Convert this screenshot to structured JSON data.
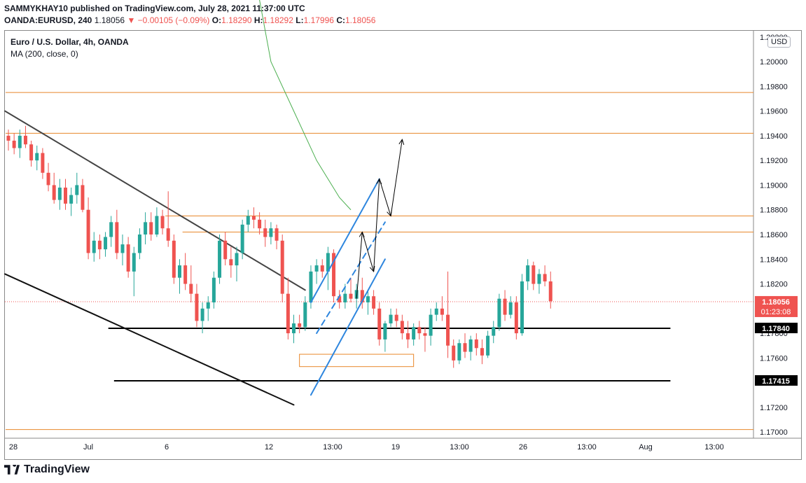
{
  "header": {
    "published": "SAMMYKHAY10 published on TradingView.com, July 28, 2021 11:37:00 UTC",
    "symbol": "OANDA:EURUSD, 240",
    "last": "1.18056",
    "change": "−0.00105 (−0.09%)",
    "o_label": "O:",
    "o": "1.18290",
    "h_label": "H:",
    "h": "1.18292",
    "l_label": "L:",
    "l": "1.17996",
    "c_label": "C:",
    "c": "1.18056"
  },
  "legend": {
    "title": "Euro / U.S. Dollar, 4h, OANDA",
    "indicator": "MA (200, close, 0)"
  },
  "currency_button": "USD",
  "footer": {
    "brand": "TradingView",
    "logo_icon": "tradingview-logo-icon"
  },
  "chart_data": {
    "type": "candlestick",
    "ylim": [
      1.1695,
      1.2025
    ],
    "y_ticks": [
      "1.17000",
      "1.17200",
      "1.17400",
      "1.17600",
      "1.17800",
      "1.18000",
      "1.18200",
      "1.18400",
      "1.18600",
      "1.18800",
      "1.19000",
      "1.19200",
      "1.19400",
      "1.19600",
      "1.19800",
      "1.20000",
      "1.20200"
    ],
    "x_ticks": [
      "28",
      "Jul",
      "6",
      "12",
      "13:00",
      "19",
      "13:00",
      "26",
      "13:00",
      "Aug",
      "13:00"
    ],
    "price_labels": [
      {
        "text": "1.18056",
        "sub": "01:23:08",
        "value": 1.18056,
        "color": "#ef5350"
      },
      {
        "text": "1.17840",
        "value": 1.1784,
        "color": "#000000"
      },
      {
        "text": "1.17415",
        "value": 1.17415,
        "color": "#000000"
      }
    ],
    "colors": {
      "up": "#26a69a",
      "down": "#ef5350",
      "orange": "#e8872a",
      "blue": "#2e86de",
      "ma": "#4caf50",
      "line": "#000000"
    },
    "candles": [
      [
        1.194,
        1.1945,
        1.1928,
        1.1936
      ],
      [
        1.1936,
        1.1942,
        1.1925,
        1.193
      ],
      [
        1.193,
        1.1945,
        1.1922,
        1.194
      ],
      [
        1.194,
        1.1948,
        1.193,
        1.1933
      ],
      [
        1.1933,
        1.1936,
        1.1915,
        1.192
      ],
      [
        1.192,
        1.1932,
        1.1912,
        1.1926
      ],
      [
        1.1926,
        1.193,
        1.1905,
        1.191
      ],
      [
        1.191,
        1.1918,
        1.1895,
        1.19
      ],
      [
        1.19,
        1.191,
        1.1885,
        1.1888
      ],
      [
        1.1888,
        1.1905,
        1.188,
        1.1898
      ],
      [
        1.1898,
        1.1905,
        1.188,
        1.1885
      ],
      [
        1.1885,
        1.1898,
        1.1875,
        1.1892
      ],
      [
        1.1892,
        1.191,
        1.1885,
        1.19
      ],
      [
        1.19,
        1.1905,
        1.1878,
        1.188
      ],
      [
        1.188,
        1.189,
        1.184,
        1.1845
      ],
      [
        1.1845,
        1.1862,
        1.1838,
        1.1855
      ],
      [
        1.1855,
        1.186,
        1.184,
        1.1848
      ],
      [
        1.1848,
        1.1862,
        1.1842,
        1.1858
      ],
      [
        1.1858,
        1.1875,
        1.185,
        1.187
      ],
      [
        1.187,
        1.188,
        1.184,
        1.1845
      ],
      [
        1.1845,
        1.186,
        1.1835,
        1.1852
      ],
      [
        1.1852,
        1.1858,
        1.1825,
        1.183
      ],
      [
        1.183,
        1.185,
        1.181,
        1.1845
      ],
      [
        1.1845,
        1.1865,
        1.184,
        1.186
      ],
      [
        1.186,
        1.1878,
        1.1852,
        1.187
      ],
      [
        1.187,
        1.1878,
        1.1855,
        1.186
      ],
      [
        1.186,
        1.1882,
        1.1858,
        1.1875
      ],
      [
        1.1875,
        1.188,
        1.186,
        1.1865
      ],
      [
        1.1865,
        1.1895,
        1.185,
        1.1855
      ],
      [
        1.1855,
        1.186,
        1.182,
        1.1825
      ],
      [
        1.1825,
        1.184,
        1.1812,
        1.1835
      ],
      [
        1.1835,
        1.1845,
        1.1815,
        1.182
      ],
      [
        1.182,
        1.1835,
        1.1805,
        1.1812
      ],
      [
        1.1812,
        1.182,
        1.1785,
        1.179
      ],
      [
        1.179,
        1.1805,
        1.178,
        1.18
      ],
      [
        1.18,
        1.181,
        1.179,
        1.1805
      ],
      [
        1.1805,
        1.183,
        1.18,
        1.1825
      ],
      [
        1.1825,
        1.186,
        1.182,
        1.1855
      ],
      [
        1.1855,
        1.1862,
        1.1835,
        1.184
      ],
      [
        1.184,
        1.185,
        1.1825,
        1.1835
      ],
      [
        1.1835,
        1.185,
        1.1822,
        1.1845
      ],
      [
        1.1845,
        1.1872,
        1.184,
        1.1868
      ],
      [
        1.1868,
        1.188,
        1.1862,
        1.1875
      ],
      [
        1.1875,
        1.1882,
        1.1865,
        1.1872
      ],
      [
        1.1872,
        1.1878,
        1.186,
        1.1865
      ],
      [
        1.1865,
        1.1872,
        1.185,
        1.1858
      ],
      [
        1.1858,
        1.187,
        1.1852,
        1.1865
      ],
      [
        1.1865,
        1.1868,
        1.1848,
        1.1855
      ],
      [
        1.1855,
        1.186,
        1.1805,
        1.1812
      ],
      [
        1.1812,
        1.1825,
        1.1775,
        1.178
      ],
      [
        1.178,
        1.1795,
        1.1772,
        1.1788
      ],
      [
        1.1788,
        1.1795,
        1.178,
        1.1785
      ],
      [
        1.1785,
        1.181,
        1.1782,
        1.1805
      ],
      [
        1.1805,
        1.1835,
        1.18,
        1.183
      ],
      [
        1.183,
        1.184,
        1.182,
        1.1835
      ],
      [
        1.1835,
        1.184,
        1.1825,
        1.183
      ],
      [
        1.183,
        1.185,
        1.1815,
        1.1845
      ],
      [
        1.1845,
        1.1848,
        1.1805,
        1.181
      ],
      [
        1.181,
        1.1815,
        1.18,
        1.1805
      ],
      [
        1.1805,
        1.182,
        1.18,
        1.1812
      ],
      [
        1.1812,
        1.1825,
        1.1805,
        1.1808
      ],
      [
        1.1808,
        1.182,
        1.18,
        1.1815
      ],
      [
        1.1815,
        1.1825,
        1.18,
        1.1805
      ],
      [
        1.1805,
        1.1815,
        1.1795,
        1.181
      ],
      [
        1.181,
        1.1815,
        1.1795,
        1.18
      ],
      [
        1.18,
        1.1805,
        1.177,
        1.1775
      ],
      [
        1.1775,
        1.179,
        1.1765,
        1.1788
      ],
      [
        1.1788,
        1.18,
        1.1785,
        1.1795
      ],
      [
        1.1795,
        1.18,
        1.1785,
        1.179
      ],
      [
        1.179,
        1.1795,
        1.1775,
        1.178
      ],
      [
        1.178,
        1.179,
        1.1768,
        1.1775
      ],
      [
        1.1775,
        1.1788,
        1.177,
        1.1785
      ],
      [
        1.1785,
        1.179,
        1.1775,
        1.178
      ],
      [
        1.178,
        1.1785,
        1.1765,
        1.1778
      ],
      [
        1.1778,
        1.18,
        1.177,
        1.1795
      ],
      [
        1.1795,
        1.1805,
        1.179,
        1.18
      ],
      [
        1.18,
        1.181,
        1.179,
        1.1795
      ],
      [
        1.1795,
        1.183,
        1.176,
        1.177
      ],
      [
        1.177,
        1.1775,
        1.1752,
        1.1758
      ],
      [
        1.1758,
        1.1775,
        1.1755,
        1.1772
      ],
      [
        1.1772,
        1.178,
        1.176,
        1.1765
      ],
      [
        1.1765,
        1.1778,
        1.1758,
        1.1775
      ],
      [
        1.1775,
        1.178,
        1.1762,
        1.1768
      ],
      [
        1.1768,
        1.1775,
        1.1755,
        1.1762
      ],
      [
        1.1762,
        1.1782,
        1.176,
        1.1778
      ],
      [
        1.1778,
        1.179,
        1.1772,
        1.1785
      ],
      [
        1.1785,
        1.1812,
        1.1782,
        1.1808
      ],
      [
        1.1808,
        1.1815,
        1.179,
        1.1795
      ],
      [
        1.1795,
        1.181,
        1.1792,
        1.1805
      ],
      [
        1.1805,
        1.181,
        1.1775,
        1.178
      ],
      [
        1.178,
        1.1828,
        1.1778,
        1.1822
      ],
      [
        1.1822,
        1.184,
        1.1815,
        1.1835
      ],
      [
        1.1835,
        1.1838,
        1.1815,
        1.182
      ],
      [
        1.182,
        1.1832,
        1.1812,
        1.1828
      ],
      [
        1.1828,
        1.1835,
        1.1818,
        1.1822
      ],
      [
        1.1822,
        1.183,
        1.18,
        1.1806
      ]
    ],
    "ma_line": [
      [
        44,
        1.205
      ],
      [
        46,
        1.2
      ],
      [
        50,
        1.196
      ],
      [
        54,
        1.192
      ],
      [
        58,
        1.189
      ],
      [
        60,
        1.188
      ]
    ],
    "channel_upper_line": [
      [
        0,
        1.196
      ],
      [
        52,
        1.1815
      ]
    ],
    "channel_lower_line": [
      [
        0,
        1.1828
      ],
      [
        50,
        1.1722
      ]
    ],
    "horizontal_levels": [
      {
        "value": 1.1975,
        "color": "orange",
        "from": 0
      },
      {
        "value": 1.1942,
        "color": "orange",
        "from": 0
      },
      {
        "value": 1.1875,
        "color": "orange",
        "from": 28
      },
      {
        "value": 1.1862,
        "color": "orange",
        "from": 31
      },
      {
        "value": 1.1702,
        "color": "orange",
        "from": 0
      },
      {
        "value": 1.1784,
        "color": "black",
        "from": 18,
        "to": 116,
        "width": 2
      },
      {
        "value": 1.17415,
        "color": "black",
        "from": 19,
        "to": 116,
        "width": 2
      }
    ],
    "support_box": {
      "x0": 51,
      "x1": 71,
      "y0": 1.1753,
      "y1": 1.1763
    },
    "blue_channel": {
      "upper": [
        [
          53,
          1.1805
        ],
        [
          65,
          1.1905
        ]
      ],
      "lower": [
        [
          53,
          1.173
        ],
        [
          66,
          1.184
        ]
      ],
      "mid_dashed": [
        [
          54,
          1.178
        ],
        [
          66,
          1.187
        ]
      ]
    },
    "projection_path": [
      [
        61,
        1.1808
      ],
      [
        62,
        1.1862
      ],
      [
        64,
        1.183
      ],
      [
        65,
        1.1905
      ],
      [
        67,
        1.1875
      ],
      [
        69,
        1.1937
      ]
    ]
  }
}
